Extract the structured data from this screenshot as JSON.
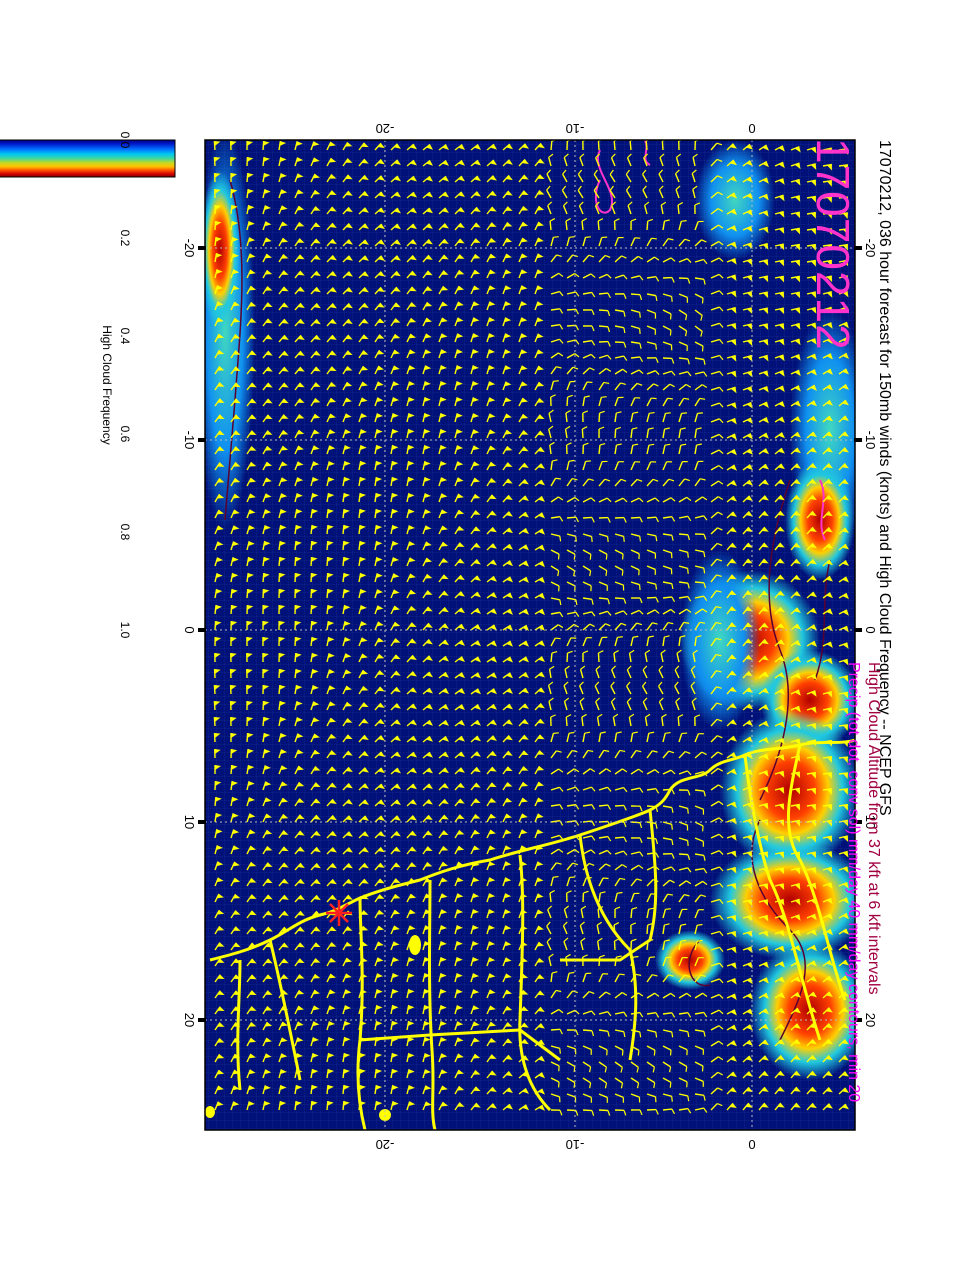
{
  "header": {
    "title": "17070212, 036 hour forecast for 150mb winds (knots) and High Cloud Frequency -- NCEP GFS",
    "stamp": "17070212",
    "subtitle_line1": "High Cloud Altitude from 37 kft at 6 kft intervals",
    "subtitle_line2": "Precip (tot dot, conv sol) mm/day 40 mm/day contours, min 20"
  },
  "map": {
    "projection": "rotated lon/lat grid",
    "lon_labels": [
      "-20",
      "-10",
      "0",
      "10",
      "20"
    ],
    "lat_labels_right": [
      "-20",
      "-10",
      "0"
    ],
    "lat_labels_left": [
      "-20",
      "-10",
      "0"
    ],
    "marker": "red asterisk"
  },
  "colorbar": {
    "label": "High Cloud Frequency",
    "ticks": [
      "0.0",
      "0.2",
      "0.4",
      "0.6",
      "0.8",
      "1.0"
    ],
    "colors": [
      "#000080",
      "#0040ff",
      "#00c0ff",
      "#40e0c0",
      "#c0e040",
      "#ffc000",
      "#ff4000",
      "#c00000",
      "#800000"
    ]
  },
  "colors": {
    "ocean": "#00127a",
    "wind_barbs": "#ffff00",
    "coastline": "#ffff00",
    "cloud_contour": "#5a0030",
    "precip": "#ff33cc",
    "frame": "#000000"
  }
}
